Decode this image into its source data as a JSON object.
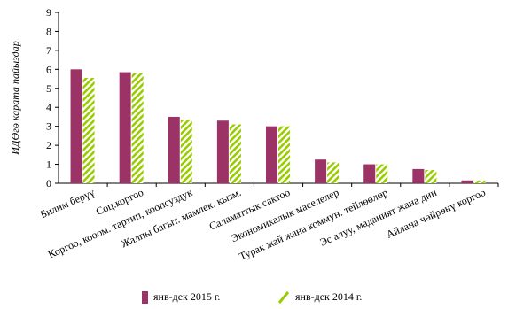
{
  "chart_data": {
    "type": "bar",
    "ylabel": "ИДӨгө карата пайыздар",
    "ylim": [
      0,
      9
    ],
    "yticks": [
      0,
      1,
      2,
      3,
      4,
      5,
      6,
      7,
      8,
      9
    ],
    "categories": [
      "Билим берүү",
      "Соц.коргоо",
      "Коргоо, кооом. тартип, коопсуздук",
      "Жалпы багыт. мамлек. кызм.",
      "Саламаттык сактоо",
      "Экономикалык маселелер",
      "Турак жай жана коммун. тейлөөлөр",
      "Эс алуу, маданият жана дин",
      "Айлана чөйрөнү коргоо"
    ],
    "series": [
      {
        "name": "янв-дек 2015 г.",
        "values": [
          6.0,
          5.85,
          3.5,
          3.3,
          3.0,
          1.25,
          1.0,
          0.75,
          0.15
        ],
        "color": "#9b3366",
        "pattern": "solid"
      },
      {
        "name": "янв-дек 2014 г.",
        "values": [
          5.55,
          5.8,
          3.35,
          3.1,
          3.0,
          1.1,
          1.0,
          0.7,
          0.15
        ],
        "color": "#99cc00",
        "pattern": "striped"
      }
    ],
    "grid": false,
    "legend": "bottom"
  }
}
